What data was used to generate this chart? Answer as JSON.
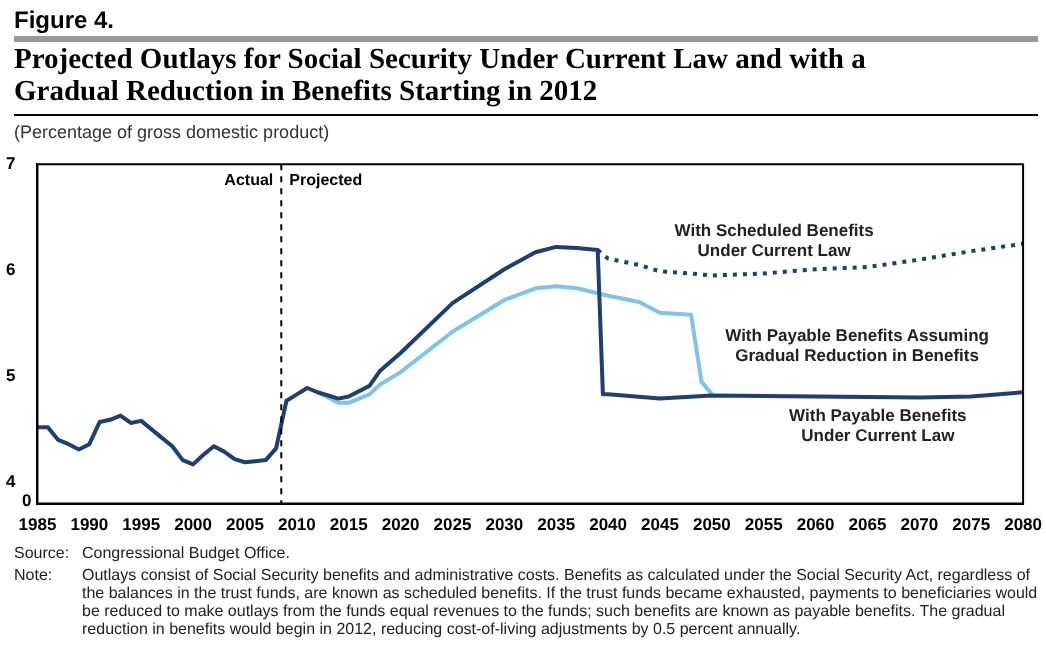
{
  "chart_data": {
    "type": "line",
    "title": "Projected Outlays for Social Security Under Current Law and with a Gradual Reduction in Benefits Starting in 2012",
    "subtitle": "(Percentage of gross domestic product)",
    "annotations": [
      "Figure 4.",
      "Source: Congressional Budget Office.",
      "Note: Outlays consist of Social Security benefits and administrative costs. Benefits as calculated under the Social Security Act, regardless of the balances in the trust funds, are known as scheduled benefits. If the trust funds became exhausted, payments to beneficiaries would be reduced to make outlays from the funds equal revenues to the funds; such benefits are known as payable benefits. The gradual reduction in benefits would begin in 2012, reducing cost-of-living adjustments by 0.5 percent annually.",
      "Actual",
      "Projected",
      "0"
    ],
    "xlim": [
      1985,
      2080
    ],
    "xticks": [
      1985,
      1990,
      1995,
      2000,
      2005,
      2010,
      2015,
      2020,
      2025,
      2030,
      2035,
      2040,
      2045,
      2050,
      2055,
      2060,
      2065,
      2070,
      2075,
      2080
    ],
    "ylim": [
      3.8,
      7
    ],
    "yticks": [
      4,
      5,
      6,
      7
    ],
    "grid": false,
    "legend": false,
    "ref_lines": [
      {
        "axis": "x",
        "value": 2008.5,
        "label": null,
        "color": "#000000",
        "line_style": "dashed"
      }
    ],
    "series": [
      {
        "name": "With Payable Benefits Under Current Law",
        "color": "#1f3f73",
        "line_style": "solid",
        "x": [
          1985,
          1986,
          1987,
          1988,
          1989,
          1990,
          1991,
          1992,
          1993,
          1994,
          1995,
          1996,
          1997,
          1998,
          1999,
          2000,
          2001,
          2002,
          2003,
          2004,
          2005,
          2006,
          2007,
          2008,
          2009,
          2010,
          2011,
          2012,
          2013,
          2014,
          2015,
          2017,
          2018,
          2020,
          2025,
          2030,
          2033,
          2035,
          2037,
          2039,
          2039.5,
          2040,
          2045,
          2050,
          2060,
          2070,
          2075,
          2080
        ],
        "values": [
          4.52,
          4.52,
          4.4,
          4.36,
          4.31,
          4.36,
          4.57,
          4.59,
          4.63,
          4.56,
          4.58,
          4.5,
          4.42,
          4.34,
          4.21,
          4.17,
          4.26,
          4.34,
          4.29,
          4.22,
          4.19,
          4.2,
          4.21,
          4.32,
          4.77,
          4.83,
          4.89,
          4.85,
          4.82,
          4.79,
          4.81,
          4.91,
          5.05,
          5.22,
          5.69,
          6.01,
          6.17,
          6.22,
          6.21,
          6.19,
          4.83,
          4.83,
          4.79,
          4.82,
          4.81,
          4.8,
          4.81,
          4.85
        ]
      },
      {
        "name": "With Scheduled Benefits Under Current Law",
        "color": "#1f3f73",
        "line_style": "dotted",
        "x": [
          2039,
          2040,
          2043,
          2045,
          2048,
          2050,
          2055,
          2060,
          2065,
          2070,
          2075,
          2080
        ],
        "values": [
          6.19,
          6.11,
          6.05,
          5.99,
          5.97,
          5.95,
          5.97,
          6.01,
          6.03,
          6.1,
          6.18,
          6.25
        ]
      },
      {
        "name": "With Payable Benefits Assuming Gradual Reduction in Benefits",
        "color": "#7fc4e8",
        "line_style": "solid",
        "x": [
          2012,
          2013,
          2014,
          2015,
          2017,
          2018,
          2020,
          2025,
          2030,
          2033,
          2035,
          2037,
          2040,
          2043,
          2045,
          2048,
          2049,
          2050
        ],
        "values": [
          4.85,
          4.8,
          4.75,
          4.75,
          4.83,
          4.92,
          5.04,
          5.42,
          5.72,
          5.83,
          5.85,
          5.83,
          5.76,
          5.7,
          5.6,
          5.58,
          4.95,
          4.83
        ]
      }
    ]
  }
}
